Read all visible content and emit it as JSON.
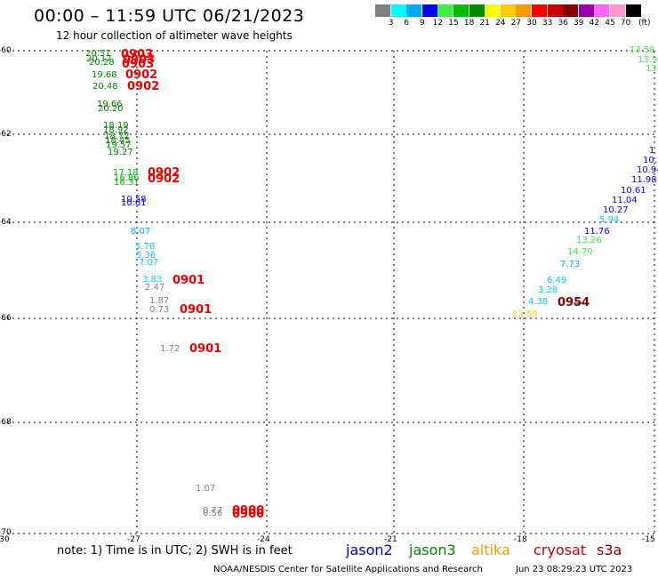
{
  "title": "00:00 – 11:59 UTC 06/21/2023",
  "subtitle": "12 hour collection of altimeter wave heights",
  "colorbar": {
    "unit": "(ft)",
    "colors": [
      "#808080",
      "#00ffff",
      "#00aaff",
      "#0000ff",
      "#44ee44",
      "#00bb00",
      "#008800",
      "#ffff00",
      "#ffcc00",
      "#ff9900",
      "#ff0000",
      "#cc0000",
      "#880000",
      "#9900aa",
      "#ff66ff",
      "#ff99cc",
      "#000000"
    ],
    "labels": [
      "3",
      "6",
      "9",
      "12",
      "15",
      "18",
      "21",
      "24",
      "27",
      "30",
      "33",
      "36",
      "39",
      "42",
      "45",
      "70"
    ]
  },
  "map": {
    "lat_labels": [
      "-60",
      "-62",
      "-64",
      "-66",
      "-68",
      "-70"
    ],
    "lon_labels": [
      "-30",
      "-27",
      "-24",
      "-21",
      "-18",
      "-15"
    ]
  },
  "observations": [
    {
      "v": "20.51",
      "c": "#008800"
    },
    {
      "v": "20.17",
      "c": "#008800"
    },
    {
      "v": "20.28",
      "c": "#008800"
    },
    {
      "v": "19.68",
      "c": "#008800"
    },
    {
      "v": "20.48",
      "c": "#008800"
    },
    {
      "v": "19.66",
      "c": "#008800"
    },
    {
      "v": "20.20",
      "c": "#008800"
    },
    {
      "v": "18.19",
      "c": "#008800"
    },
    {
      "v": "18.92",
      "c": "#008800"
    },
    {
      "v": "18.72",
      "c": "#008800"
    },
    {
      "v": "18.45",
      "c": "#008800"
    },
    {
      "v": "19.57",
      "c": "#008800"
    },
    {
      "v": "19.27",
      "c": "#008800"
    },
    {
      "v": "17.18",
      "c": "#00bb00"
    },
    {
      "v": "16.86",
      "c": "#00bb00"
    },
    {
      "v": "16.31",
      "c": "#00bb00"
    },
    {
      "v": "10.58",
      "c": "#0000ff"
    },
    {
      "v": "10.61",
      "c": "#0000ff"
    },
    {
      "v": "8.07",
      "c": "#00aaff"
    },
    {
      "v": "5.76",
      "c": "#00ccff"
    },
    {
      "v": "5.36",
      "c": "#00ccff"
    },
    {
      "v": "7.07",
      "c": "#00ccff"
    },
    {
      "v": "3.83",
      "c": "#00ccff"
    },
    {
      "v": "2.47",
      "c": "#808080"
    },
    {
      "v": "1.87",
      "c": "#808080"
    },
    {
      "v": "0.73",
      "c": "#808080"
    },
    {
      "v": "1.72",
      "c": "#808080"
    },
    {
      "v": "1.07",
      "c": "#808080"
    },
    {
      "v": "0.77",
      "c": "#808080"
    },
    {
      "v": "0.56",
      "c": "#808080"
    },
    {
      "v": "13.58",
      "c": "#44ee44"
    },
    {
      "v": "13.9",
      "c": "#44ee44"
    },
    {
      "v": "13",
      "c": "#44ee44"
    },
    {
      "v": "1",
      "c": "#0000ff"
    },
    {
      "v": "10.",
      "c": "#0000ff"
    },
    {
      "v": "10.94",
      "c": "#0000ff"
    },
    {
      "v": "11.98",
      "c": "#0000ff"
    },
    {
      "v": "10.61",
      "c": "#0000ff"
    },
    {
      "v": "11.04",
      "c": "#0000ff"
    },
    {
      "v": "10.27",
      "c": "#0000ff"
    },
    {
      "v": "5.94",
      "c": "#00ccff"
    },
    {
      "v": "11.76",
      "c": "#0000ff"
    },
    {
      "v": "13.26",
      "c": "#44ee44"
    },
    {
      "v": "14.70",
      "c": "#44ee44"
    },
    {
      "v": "7.73",
      "c": "#00aaff"
    },
    {
      "v": "6.49",
      "c": "#00ccff"
    },
    {
      "v": "3.28",
      "c": "#00ccff"
    },
    {
      "v": "4.38",
      "c": "#00ccff"
    },
    {
      "v": "23.59",
      "c": "#ffcc00"
    }
  ],
  "time_marks": [
    {
      "t": "0903",
      "c": "#ee0000"
    },
    {
      "t": "0903",
      "c": "#ee0000"
    },
    {
      "t": "0903",
      "c": "#ee0000"
    },
    {
      "t": "0902",
      "c": "#ee0000"
    },
    {
      "t": "0902",
      "c": "#ee0000"
    },
    {
      "t": "0902",
      "c": "#ee0000"
    },
    {
      "t": "0902",
      "c": "#ee0000"
    },
    {
      "t": "0901",
      "c": "#ee0000"
    },
    {
      "t": "0901",
      "c": "#ee0000"
    },
    {
      "t": "0901",
      "c": "#ee0000"
    },
    {
      "t": "0900",
      "c": "#ee0000"
    },
    {
      "t": "0900",
      "c": "#ee0000"
    },
    {
      "t": "0954",
      "c": "#880000"
    }
  ],
  "footer": {
    "note": "note: 1) Time is in UTC; 2) SWH is in feet",
    "satellites": [
      {
        "name": "jason2",
        "color": "#0000cc"
      },
      {
        "name": "jason3",
        "color": "#008800"
      },
      {
        "name": "altika",
        "color": "#ff9900"
      },
      {
        "name": "cryosat",
        "color": "#cc0000"
      },
      {
        "name": "s3a",
        "color": "#880000"
      }
    ],
    "credit": "NOAA/NESDIS Center for Satellite Applications and Research",
    "timestamp": "Jun 23 08:29:23 UTC 2023"
  }
}
